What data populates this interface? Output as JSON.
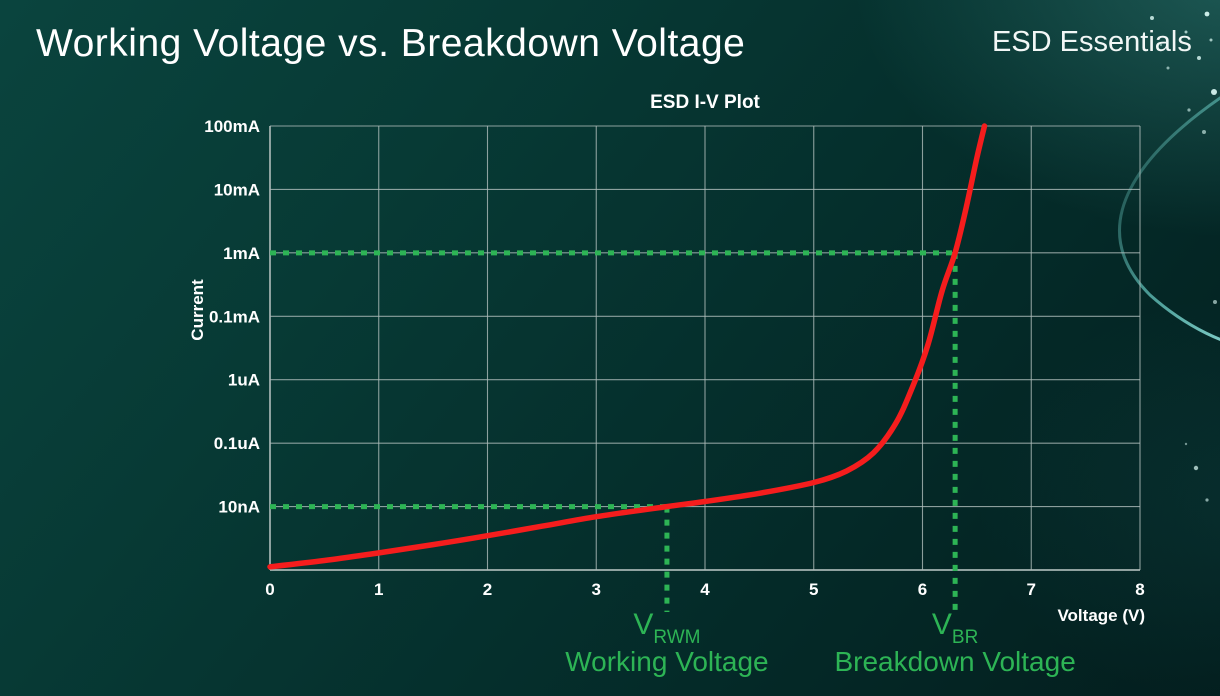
{
  "page": {
    "title": "Working Voltage vs. Breakdown Voltage",
    "brand": "ESD Essentials"
  },
  "chart_data": {
    "type": "line",
    "title": "ESD I-V Plot",
    "xlabel": "Voltage (V)",
    "ylabel": "Current",
    "xlim": [
      0,
      8
    ],
    "x_ticks": [
      0,
      1,
      2,
      3,
      4,
      5,
      6,
      7,
      8
    ],
    "grid": true,
    "y_axis": {
      "scale": "log",
      "rows": 7,
      "tick_labels": [
        "100mA",
        "10mA",
        "1mA",
        "0.1mA",
        "1uA",
        "0.1uA",
        "10nA"
      ]
    },
    "series": [
      {
        "name": "ESD I-V curve",
        "color": "#f51d1d",
        "points_v_row": [
          [
            0,
            6.95
          ],
          [
            0.5,
            6.85
          ],
          [
            1,
            6.73
          ],
          [
            1.5,
            6.6
          ],
          [
            2,
            6.46
          ],
          [
            2.5,
            6.31
          ],
          [
            3,
            6.16
          ],
          [
            3.65,
            6.0
          ],
          [
            4,
            5.92
          ],
          [
            4.5,
            5.79
          ],
          [
            5,
            5.62
          ],
          [
            5.3,
            5.44
          ],
          [
            5.55,
            5.15
          ],
          [
            5.75,
            4.7
          ],
          [
            5.9,
            4.15
          ],
          [
            6.05,
            3.45
          ],
          [
            6.18,
            2.6
          ],
          [
            6.3,
            2.0
          ],
          [
            6.4,
            1.3
          ],
          [
            6.5,
            0.5
          ],
          [
            6.57,
            0.0
          ]
        ]
      }
    ],
    "annotations": [
      {
        "symbol": "V",
        "subscript": "RWM",
        "caption": "Working Voltage",
        "voltage": 3.65,
        "row": 6,
        "current_level": "10nA",
        "color": "#2db455"
      },
      {
        "symbol": "V",
        "subscript": "BR",
        "caption": "Breakdown Voltage",
        "voltage": 6.3,
        "row": 2,
        "current_level": "1mA",
        "color": "#2db455"
      }
    ],
    "colors": {
      "curve": "#f51d1d",
      "marker_green": "#2db455",
      "grid": "#aebcba",
      "text": "#ffffff"
    }
  }
}
